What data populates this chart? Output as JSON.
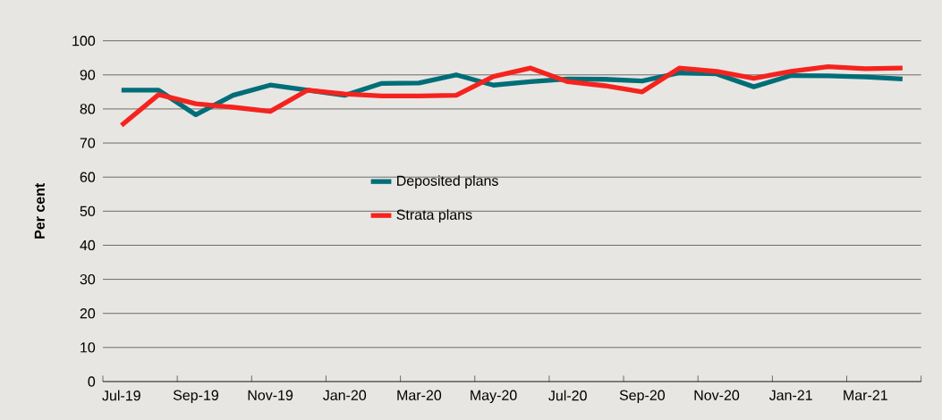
{
  "chart_data": {
    "type": "line",
    "ylabel": "Per cent",
    "categories": [
      "Jul-19",
      null,
      "Sep-19",
      null,
      "Nov-19",
      null,
      "Jan-20",
      null,
      "Mar-20",
      null,
      "May-20",
      null,
      "Jul-20",
      null,
      "Sep-20",
      null,
      "Nov-20",
      null,
      "Jan-21",
      null,
      "Mar-21",
      null
    ],
    "series": [
      {
        "name": "Deposited plans",
        "color": "#006e78",
        "values": [
          85.5,
          85.5,
          78.3,
          84,
          87,
          85.5,
          84,
          87.5,
          87.6,
          90,
          87,
          88,
          88.8,
          88.7,
          88.2,
          90.6,
          90.3,
          86.5,
          89.8,
          89.7,
          89.4,
          88.8
        ]
      },
      {
        "name": "Strata plans",
        "color": "#f5231e",
        "values": [
          75.2,
          84.2,
          81.5,
          80.5,
          79.3,
          85.5,
          84.4,
          83.8,
          83.8,
          84,
          89.5,
          92,
          88,
          86.8,
          85,
          92,
          91,
          89,
          91,
          92.4,
          91.8,
          92
        ]
      }
    ],
    "ylim": [
      0,
      100
    ],
    "yticks": [
      0,
      10,
      20,
      30,
      40,
      50,
      60,
      70,
      80,
      90,
      100
    ],
    "grid": "y",
    "legend": "center",
    "marker": "none",
    "line_style": "solid"
  }
}
